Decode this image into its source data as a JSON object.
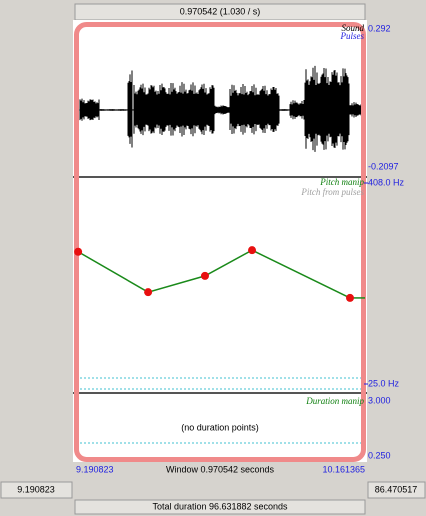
{
  "top_bar": "0.970542 (1.030 / s)",
  "sound_panel": {
    "labels": [
      "Sound",
      "Pulses"
    ],
    "y_top": "0.292",
    "y_bottom": "-0.2097"
  },
  "pitch_panel": {
    "labels": [
      "Pitch manip",
      "Pitch from pulses"
    ],
    "ylim": [
      25,
      408
    ],
    "yticks": [
      {
        "value": 408,
        "label": "408.0 Hz"
      },
      {
        "value": 25,
        "label": "25.0 Hz"
      }
    ],
    "points": {
      "x": [
        9.198,
        9.433,
        9.624,
        9.782,
        10.111
      ],
      "y": [
        277,
        200,
        231,
        280,
        189
      ]
    }
  },
  "duration_panel": {
    "labels": [
      "Duration manip"
    ],
    "message": "(no duration points)",
    "yticks": [
      {
        "value": 3,
        "label": "3.000"
      },
      {
        "value": 0.25,
        "label": "0.250"
      }
    ]
  },
  "window": {
    "start": 9.190823,
    "end": 10.161365,
    "caption": "Window 0.970542 seconds"
  },
  "visible_start": "9.190823",
  "visible_end": "86.470517",
  "total_duration": "Total duration 96.631882 seconds"
}
